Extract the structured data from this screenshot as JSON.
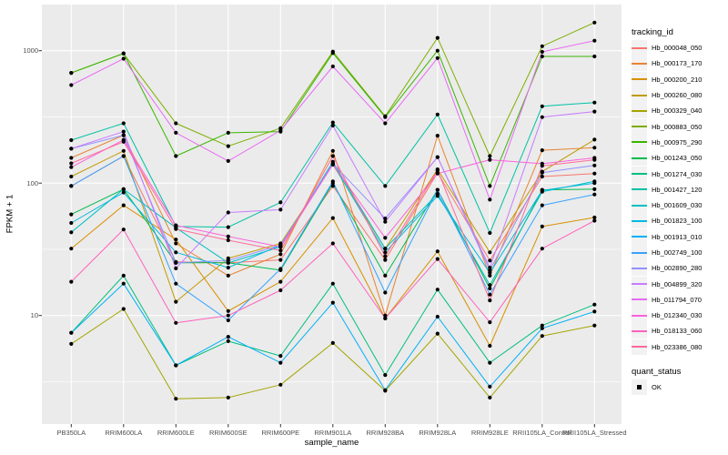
{
  "figure": {
    "y_axis": {
      "title": "FPKM + 1",
      "tick_labels": [
        "1000",
        "100",
        "10"
      ],
      "tick_values": [
        1000,
        100,
        10
      ],
      "minor_values": [
        316.23,
        31.623,
        3.1623
      ],
      "scale": "log10"
    },
    "x_axis": {
      "title": "sample_name",
      "categories": [
        "PB350LA",
        "RRIM600LA",
        "RRIM600LE",
        "RRIM600SE",
        "RRIM600PE",
        "RRIM901LA",
        "RRIM928BA",
        "RRIM928LA",
        "RRIM928LE",
        "RRII105LA_Control",
        "RRII105LA_Stressed"
      ]
    },
    "legend": {
      "tracking_title": "tracking_id",
      "quant_title": "quant_status",
      "quant_items": [
        {
          "label": "OK",
          "shape": "filled-square",
          "color": "#000000"
        }
      ]
    },
    "colors": {
      "panel_bg": "#EBEBEB",
      "grid": "#FFFFFF",
      "legend_key_bg": "#F2F2F2",
      "tick_text": "#4D4D4D",
      "tick_mark": "#333333",
      "point": "#000000"
    }
  },
  "chart_data": {
    "type": "line",
    "title": "",
    "xlabel": "sample_name",
    "ylabel": "FPKM + 1",
    "y_scale": "log10",
    "ylim": [
      1.5,
      2200
    ],
    "grid": true,
    "legend_position": "right",
    "legend_title": "tracking_id",
    "point_legend": {
      "title": "quant_status",
      "items": [
        {
          "label": "OK",
          "shape": "filled-square",
          "color": "#000000"
        }
      ]
    },
    "categories": [
      "PB350LA",
      "RRIM600LA",
      "RRIM600LE",
      "RRIM600SE",
      "RRIM600PE",
      "RRIM901LA",
      "RRIM928BA",
      "RRIM928LA",
      "RRIM928LE",
      "RRII105LA_Control",
      "RRII105LA_Stressed"
    ],
    "series": [
      {
        "name": "Hb_000048_050",
        "color": "#F8766D",
        "values": [
          95,
          160,
          25.4,
          25,
          26.3,
          95,
          26.3,
          120,
          26,
          112,
          118
        ]
      },
      {
        "name": "Hb_000173_170",
        "color": "#EA8331",
        "values": [
          155,
          230,
          35,
          20,
          29,
          175,
          10,
          228,
          20,
          177,
          185
        ]
      },
      {
        "name": "Hb_000200_210",
        "color": "#D89000",
        "values": [
          32,
          68,
          37.5,
          10.8,
          18,
          54.5,
          9.5,
          30.5,
          5.9,
          47,
          55
        ]
      },
      {
        "name": "Hb_000260_080",
        "color": "#C09B00",
        "values": [
          112,
          175,
          12.7,
          27,
          35,
          138,
          32,
          127,
          30,
          122,
          213
        ]
      },
      {
        "name": "Hb_000329_040",
        "color": "#A3A500",
        "values": [
          6.1,
          11.2,
          2.35,
          2.4,
          3.0,
          6.2,
          2.7,
          7.3,
          2.4,
          7.0,
          8.4
        ]
      },
      {
        "name": "Hb_000883_050",
        "color": "#7CAE00",
        "values": [
          680,
          950,
          283,
          190,
          260,
          985,
          320,
          1250,
          160,
          1080,
          1630
        ]
      },
      {
        "name": "Hb_000975_290",
        "color": "#39B600",
        "values": [
          680,
          955,
          160,
          240,
          245,
          960,
          315,
          1000,
          95,
          905,
          905
        ]
      },
      {
        "name": "Hb_001243_050",
        "color": "#00BB4E",
        "values": [
          58,
          90,
          25,
          25,
          22,
          100,
          20,
          89,
          16,
          89,
          90
        ]
      },
      {
        "name": "Hb_001274_030",
        "color": "#00BF7D",
        "values": [
          7.4,
          20,
          4.2,
          6.4,
          4.95,
          17.4,
          3.55,
          15.7,
          4.4,
          8.4,
          12.1
        ]
      },
      {
        "name": "Hb_001427_120",
        "color": "#00C1A3",
        "values": [
          211,
          283,
          47,
          46.5,
          71.5,
          287,
          95,
          330,
          42,
          380,
          406
        ]
      },
      {
        "name": "Hb_001609_030",
        "color": "#00BFC4",
        "values": [
          42.5,
          90,
          46,
          25,
          33,
          145,
          32,
          83,
          17,
          86,
          103
        ]
      },
      {
        "name": "Hb_001823_100",
        "color": "#00BAE0",
        "values": [
          50,
          85,
          30,
          23,
          34,
          140,
          30,
          80,
          21,
          88,
          100
        ]
      },
      {
        "name": "Hb_001913_010",
        "color": "#00B0F6",
        "values": [
          7.4,
          17.4,
          4.2,
          6.9,
          4.4,
          12.5,
          2.73,
          9.8,
          2.9,
          8.0,
          10.7
        ]
      },
      {
        "name": "Hb_002749_100",
        "color": "#35A2FF",
        "values": [
          95,
          160,
          17.4,
          9.2,
          22.5,
          103,
          14.9,
          89,
          14.4,
          68,
          82
        ]
      },
      {
        "name": "Hb_002890_280",
        "color": "#9590FF",
        "values": [
          182,
          230,
          25,
          26,
          34,
          140,
          54,
          157,
          22,
          120,
          136
        ]
      },
      {
        "name": "Hb_004899_320",
        "color": "#C77CFF",
        "values": [
          182,
          245,
          22.7,
          60,
          63,
          272,
          51,
          157,
          23,
          315,
          347
        ]
      },
      {
        "name": "Hb_011794_070",
        "color": "#E76BF3",
        "values": [
          550,
          870,
          240,
          147,
          250,
          760,
          283,
          880,
          75,
          980,
          1190
        ]
      },
      {
        "name": "Hb_012340_030",
        "color": "#FA62DB",
        "values": [
          132,
          212,
          48,
          39.5,
          33,
          138,
          38.6,
          118,
          150,
          140,
          155
        ]
      },
      {
        "name": "Hb_018133_060",
        "color": "#FF62BC",
        "values": [
          18,
          44.6,
          8.8,
          10,
          15.5,
          35,
          9.5,
          26.7,
          8.9,
          32,
          52
        ]
      },
      {
        "name": "Hb_023386_080",
        "color": "#FF6A98",
        "values": [
          141,
          205,
          45,
          37,
          31,
          160,
          28,
          125,
          13,
          135,
          150
        ]
      }
    ]
  }
}
